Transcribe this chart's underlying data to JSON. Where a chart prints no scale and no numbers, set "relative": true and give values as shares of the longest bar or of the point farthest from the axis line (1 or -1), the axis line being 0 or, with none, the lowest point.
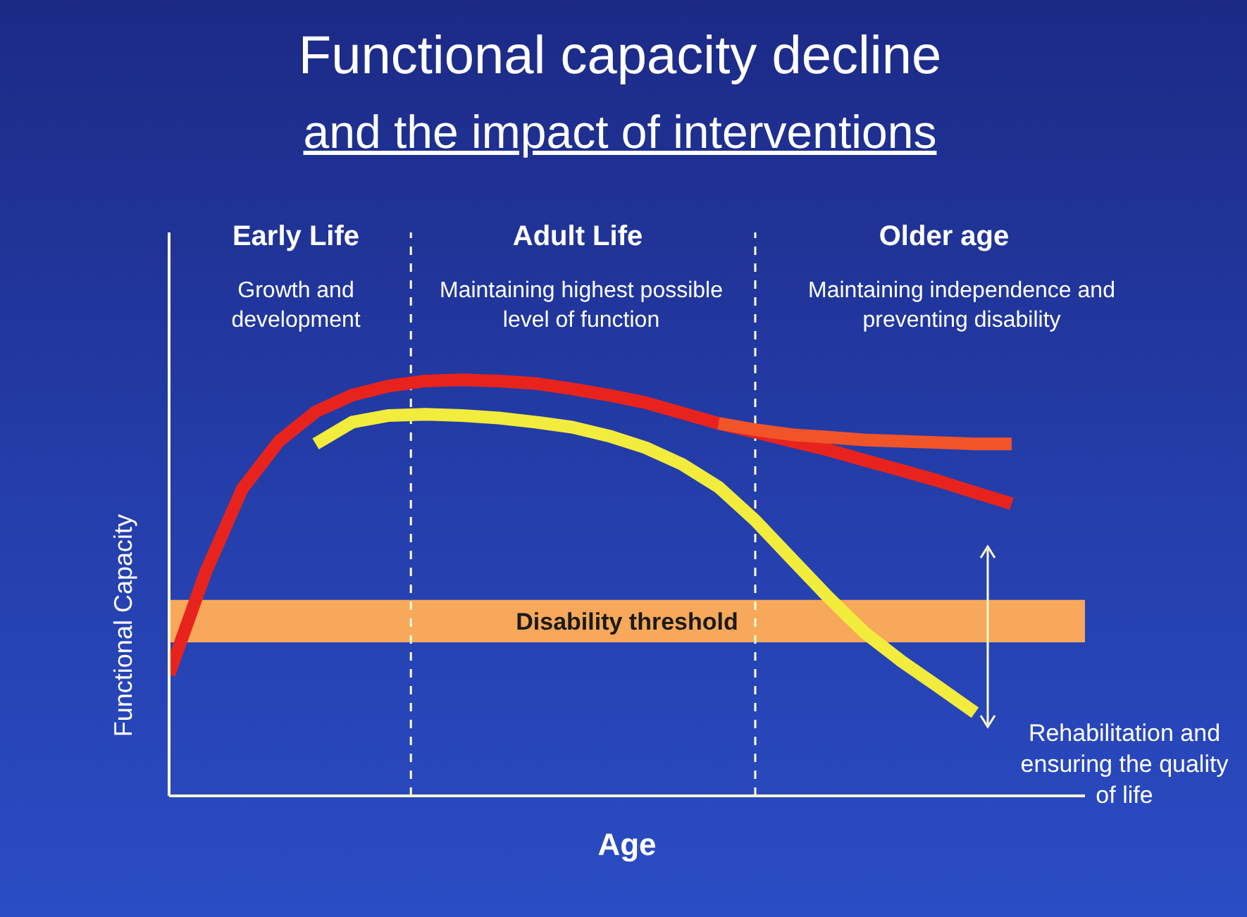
{
  "chart_data": {
    "type": "line",
    "title": "Functional capacity decline",
    "subtitle": "and the impact of interventions",
    "xlabel": "Age",
    "ylabel": "Functional Capacity",
    "relative": true,
    "categories": [
      null,
      null,
      null,
      null,
      null,
      null,
      null,
      null,
      null,
      null,
      null,
      null,
      null,
      null,
      null,
      null,
      null,
      null,
      null,
      null,
      null,
      null,
      null,
      null
    ],
    "series": [
      {
        "color": "#e8231e",
        "values": [
          0.292,
          0.538,
          0.738,
          0.852,
          0.923,
          0.963,
          0.985,
          0.997,
          1,
          0.997,
          0.991,
          0.978,
          0.963,
          0.945,
          0.92,
          0.895,
          0.874,
          0.852,
          0.831,
          0.806,
          0.782,
          0.757,
          0.729,
          0.702
        ]
      },
      {
        "color": "#f2542a",
        "values": [
          null,
          null,
          null,
          null,
          null,
          null,
          null,
          null,
          null,
          null,
          null,
          null,
          null,
          null,
          null,
          0.895,
          0.88,
          0.868,
          0.862,
          0.855,
          0.852,
          0.849,
          0.846,
          0.846
        ]
      },
      {
        "color": "#f2ec3c",
        "values": [
          null,
          null,
          null,
          null,
          0.846,
          0.898,
          0.914,
          0.917,
          0.914,
          0.908,
          0.898,
          0.886,
          0.865,
          0.837,
          0.797,
          0.742,
          0.662,
          0.569,
          0.477,
          0.391,
          0.323,
          0.262,
          0.2,
          null
        ]
      }
    ],
    "bands": [
      {
        "axis": "y",
        "from": 0.369,
        "to": 0.471,
        "label": "Disability threshold",
        "color": "#f7a85a"
      }
    ],
    "annotations": [
      "Early Life",
      "Growth and development",
      "Adult Life",
      "Maintaining highest possible level of function",
      "Older age",
      "Maintaining independence and preventing disability",
      "Rehabilitation and ensuring the quality of life"
    ]
  }
}
